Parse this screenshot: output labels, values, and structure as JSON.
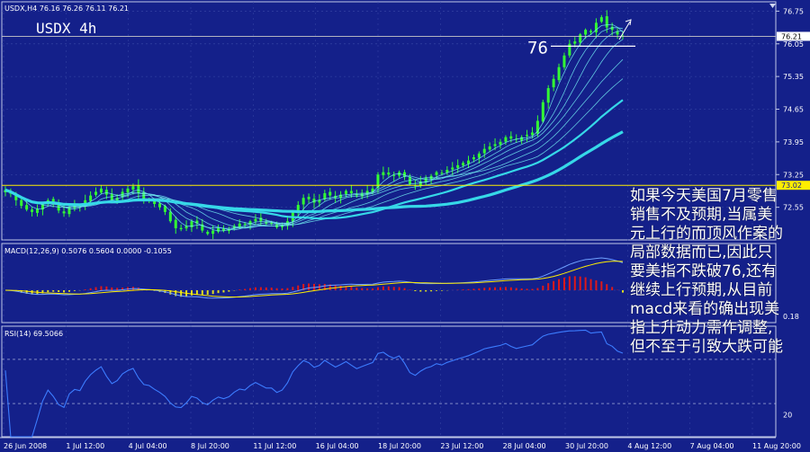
{
  "colors": {
    "background": "#14208a",
    "grid": "#3a4aa8",
    "frame": "#c0c8e8",
    "axis_text": "#ffffff",
    "candle": "#33ff33",
    "ma_band": "#36d8e8",
    "ma_thin": "#6fe6f0",
    "level_line": "#ffee00",
    "macd_signal": "#ffee00",
    "macd_line": "#6fa0ff",
    "macd_hist_pos": "#e01818",
    "macd_hist_neg": "#e0e020",
    "rsi": "#3c7cff"
  },
  "main": {
    "info": "USDX,H4  76.16 76.26 76.11 76.21",
    "title": "USDX  4h",
    "level_label": "76",
    "price_tag": "76.21",
    "yellow_tag": "73.02"
  },
  "macd": {
    "info": "MACD(12,26,9) 0.5076 0.5604 0.0000 -0.1055",
    "right_label": "0.18"
  },
  "rsi": {
    "info": "RSI(14) 69.5066",
    "right_label": "20"
  },
  "commentary": [
    "如果今天美国7月零售",
    "销售不及预期,当属美",
    "元上行的而顶风作案的",
    "局部数据而已,因此只",
    "要美指不跌破76,还有",
    "继续上行预期,从目前",
    "macd来看的确出现美",
    "指上升动力需作调整,",
    "但不至于引致大跌可能"
  ],
  "chart_data": [
    {
      "type": "candlestick",
      "symbol": "USDX",
      "timeframe": "H4",
      "ohlc_last": {
        "open": 76.16,
        "high": 76.26,
        "low": 76.11,
        "close": 76.21
      },
      "ylim": [
        71.85,
        76.95
      ],
      "y_ticks": [
        76.75,
        76.05,
        75.35,
        74.65,
        73.95,
        73.25,
        72.55
      ],
      "x_ticks": [
        "26 Jun 2008",
        "1 Jul 12:00",
        "4 Jul 04:00",
        "8 Jul 20:00",
        "11 Jul 12:00",
        "16 Jul 04:00",
        "18 Jul 20:00",
        "23 Jul 12:00",
        "28 Jul 04:00",
        "30 Jul 20:00",
        "4 Aug 12:00",
        "7 Aug 04:00",
        "11 Aug 20:00"
      ],
      "closes": [
        72.92,
        72.84,
        72.7,
        72.58,
        72.5,
        72.45,
        72.52,
        72.62,
        72.7,
        72.62,
        72.48,
        72.42,
        72.55,
        72.6,
        72.58,
        72.7,
        72.8,
        72.88,
        72.95,
        72.82,
        72.7,
        72.75,
        72.88,
        72.95,
        73.0,
        72.85,
        72.72,
        72.7,
        72.62,
        72.55,
        72.45,
        72.25,
        72.1,
        72.08,
        72.15,
        72.25,
        72.2,
        72.05,
        71.98,
        72.05,
        72.1,
        72.05,
        72.08,
        72.15,
        72.2,
        72.18,
        72.25,
        72.3,
        72.25,
        72.2,
        72.2,
        72.12,
        72.15,
        72.25,
        72.45,
        72.6,
        72.75,
        72.72,
        72.65,
        72.7,
        72.85,
        72.8,
        72.75,
        72.82,
        72.9,
        72.85,
        72.8,
        72.85,
        72.9,
        72.95,
        73.25,
        73.3,
        73.25,
        73.22,
        73.3,
        73.2,
        73.05,
        73.0,
        73.1,
        73.18,
        73.22,
        73.3,
        73.28,
        73.35,
        73.4,
        73.45,
        73.5,
        73.55,
        73.62,
        73.7,
        73.8,
        73.85,
        73.9,
        73.95,
        74.05,
        74.02,
        74.0,
        74.05,
        74.1,
        74.15,
        74.4,
        74.8,
        75.1,
        75.3,
        75.55,
        75.8,
        76.05,
        76.1,
        76.25,
        76.35,
        76.3,
        76.5,
        76.62,
        76.4,
        76.35,
        76.25,
        76.21
      ],
      "horizontal_levels": [
        {
          "value": 73.02,
          "color": "yellow",
          "label": "73.02"
        },
        {
          "value": 76.21,
          "color": "white",
          "label": "76.21"
        },
        {
          "value": 76.0,
          "color": "white",
          "label": "76"
        }
      ]
    },
    {
      "type": "macd",
      "params": [
        12,
        26,
        9
      ],
      "values": {
        "macd": 0.5076,
        "signal": 0.5604,
        "histogram": -0.1055
      }
    },
    {
      "type": "line",
      "name": "RSI(14)",
      "last": 69.5066,
      "ylim": [
        0,
        100
      ],
      "levels": [
        70,
        30
      ]
    }
  ]
}
